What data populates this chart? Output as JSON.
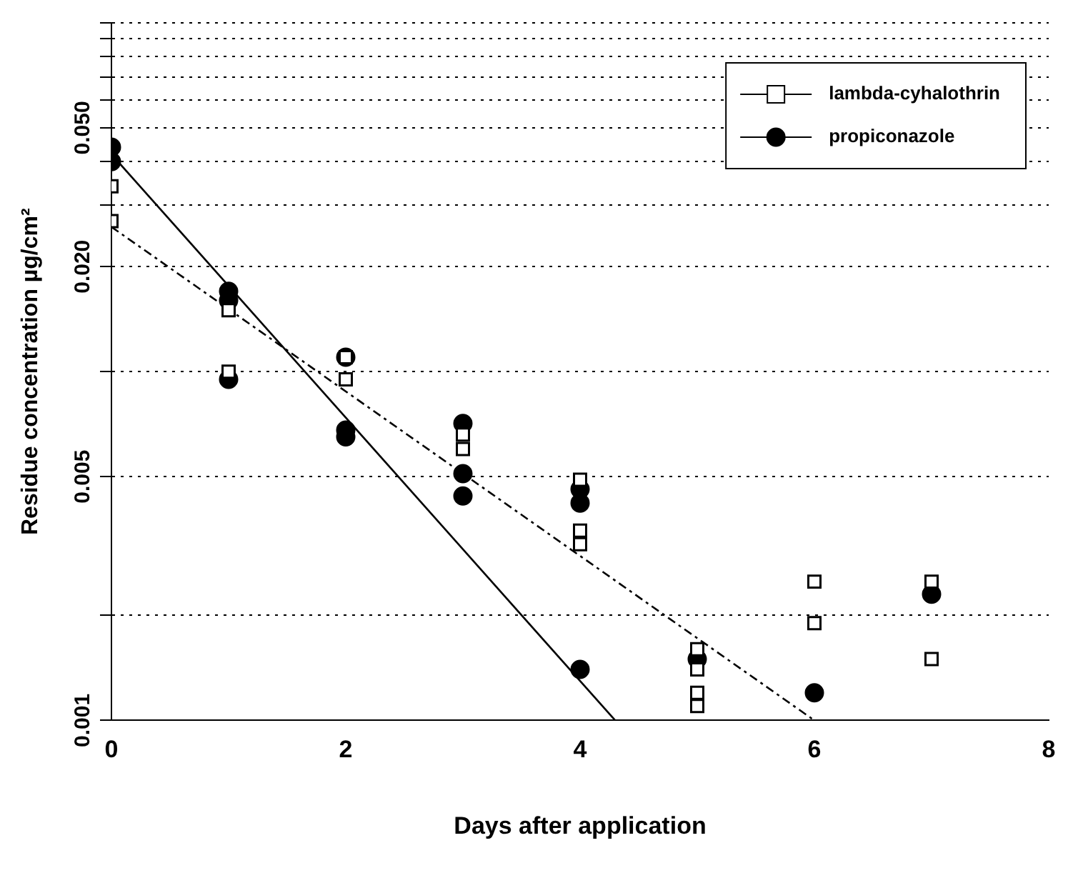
{
  "chart_data": {
    "type": "scatter",
    "xlabel": "Days after application",
    "ylabel": "Residue concentration µg/cm²",
    "log": "y",
    "xlim": [
      0,
      8
    ],
    "xticks": [
      0,
      2,
      4,
      6,
      8
    ],
    "ylim": [
      0.001,
      0.1
    ],
    "yticks": [
      0.001,
      {
        "value": 0.002,
        "label": null
      },
      {
        "value": 0.005,
        "label": "0.005"
      },
      {
        "value": 0.01,
        "label": null
      },
      {
        "value": 0.02,
        "label": "0.020"
      },
      {
        "value": 0.03,
        "label": null
      },
      {
        "value": 0.04,
        "label": null
      },
      {
        "value": 0.05,
        "label": "0.050"
      },
      {
        "value": 0.06,
        "label": null
      },
      {
        "value": 0.07,
        "label": null
      },
      {
        "value": 0.08,
        "label": null
      },
      {
        "value": 0.09,
        "label": null
      },
      {
        "value": 0.1,
        "label": null
      }
    ],
    "grid": "y",
    "legend": "top right",
    "series": [
      {
        "name": "lambda-cyhalothrin",
        "color": "#000000",
        "marker": "square",
        "x": [
          0,
          0,
          1,
          1,
          2,
          2,
          3,
          3,
          4,
          4,
          4,
          5,
          5,
          5,
          5,
          6,
          6,
          7,
          7
        ],
        "values": [
          0.034,
          0.027,
          0.015,
          0.01,
          0.011,
          0.0095,
          0.0066,
          0.006,
          0.0049,
          0.0035,
          0.0032,
          0.0016,
          0.0014,
          0.0012,
          0.0011,
          0.0025,
          0.0019,
          0.0025,
          0.0015
        ]
      },
      {
        "name": "propiconazole",
        "color": "#000000",
        "marker": "circle",
        "x": [
          0,
          0,
          1,
          1,
          1,
          2,
          2,
          2,
          3,
          3,
          3,
          4,
          4,
          4,
          5,
          6,
          7
        ],
        "values": [
          0.044,
          0.04,
          0.017,
          0.016,
          0.0095,
          0.011,
          0.0068,
          0.0065,
          0.0071,
          0.0051,
          0.0044,
          0.0046,
          0.0042,
          0.0014,
          0.0015,
          0.0012,
          0.0023
        ]
      },
      {
        "type": "line",
        "color": "#000000",
        "line_style": "dashed",
        "marker": "none",
        "x": [
          0,
          6
        ],
        "values": [
          0.026,
          0.001
        ]
      },
      {
        "type": "line",
        "color": "#000000",
        "line_style": "solid",
        "marker": "none",
        "x": [
          0,
          4.3
        ],
        "values": [
          0.042,
          0.001
        ]
      }
    ]
  }
}
